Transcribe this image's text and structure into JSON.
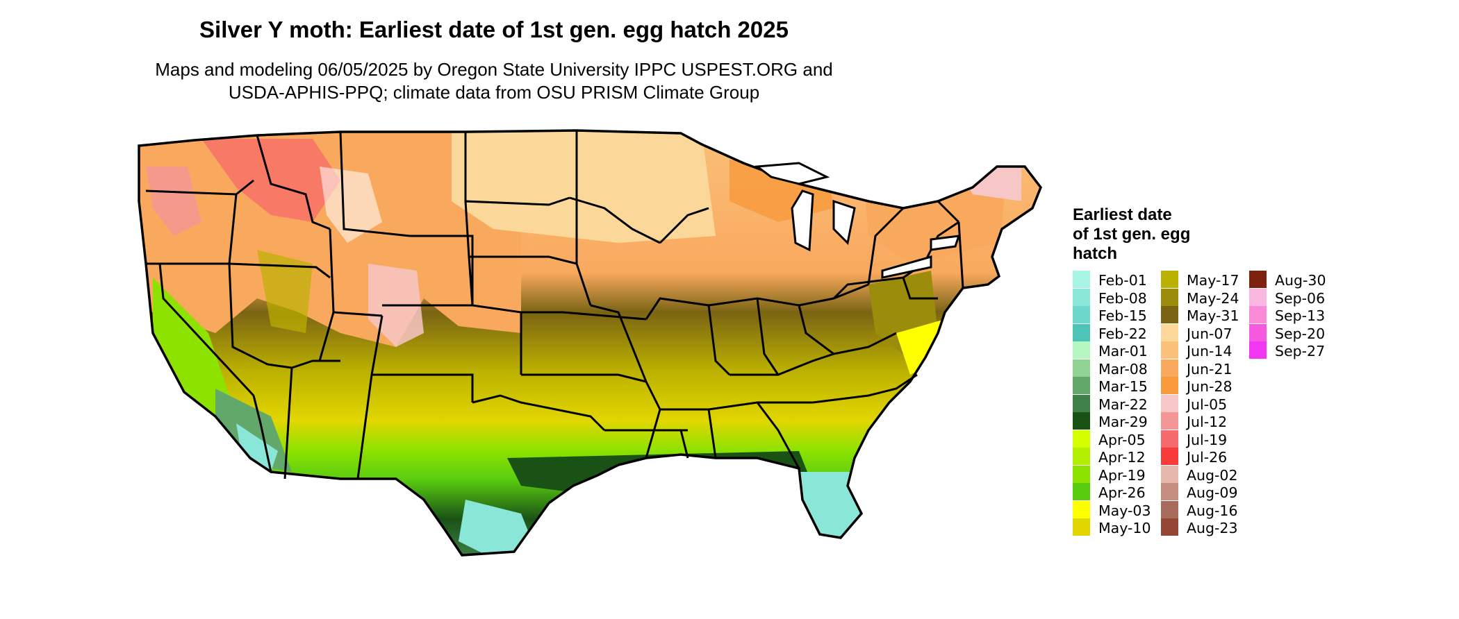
{
  "title": "Silver Y moth: Earliest date of 1st gen. egg hatch 2025",
  "subtitle_line1": "Maps and modeling 06/05/2025 by Oregon State University IPPC USPEST.ORG and",
  "subtitle_line2": "USDA-APHIS-PPQ; climate data from OSU PRISM Climate Group",
  "legend": {
    "title_lines": [
      "Earliest date",
      "of 1st gen. egg",
      "hatch"
    ],
    "columns": [
      [
        {
          "label": "Feb-01",
          "color": "#a8f5e4"
        },
        {
          "label": "Feb-08",
          "color": "#8ae6d6"
        },
        {
          "label": "Feb-15",
          "color": "#6dd7cc"
        },
        {
          "label": "Feb-22",
          "color": "#4ec4b9"
        },
        {
          "label": "Mar-01",
          "color": "#b6f6c1"
        },
        {
          "label": "Mar-08",
          "color": "#8fd294"
        },
        {
          "label": "Mar-15",
          "color": "#62a86a"
        },
        {
          "label": "Mar-22",
          "color": "#3f8049"
        },
        {
          "label": "Mar-29",
          "color": "#1a5216"
        },
        {
          "label": "Apr-05",
          "color": "#d4ff00"
        },
        {
          "label": "Apr-12",
          "color": "#b3f000"
        },
        {
          "label": "Apr-19",
          "color": "#8ee200"
        },
        {
          "label": "Apr-26",
          "color": "#5acc10"
        },
        {
          "label": "May-03",
          "color": "#ffff00"
        },
        {
          "label": "May-10",
          "color": "#e1d600"
        }
      ],
      [
        {
          "label": "May-17",
          "color": "#bcb100"
        },
        {
          "label": "May-24",
          "color": "#9b8c0b"
        },
        {
          "label": "May-31",
          "color": "#7a6414"
        },
        {
          "label": "Jun-07",
          "color": "#fbd79a"
        },
        {
          "label": "Jun-14",
          "color": "#fbc07a"
        },
        {
          "label": "Jun-21",
          "color": "#f9a95e"
        },
        {
          "label": "Jun-28",
          "color": "#f89a3c"
        },
        {
          "label": "Jul-05",
          "color": "#f7c6c6"
        },
        {
          "label": "Jul-12",
          "color": "#f49696"
        },
        {
          "label": "Jul-19",
          "color": "#f56a6a"
        },
        {
          "label": "Jul-26",
          "color": "#f83a3a"
        },
        {
          "label": "Aug-02",
          "color": "#e5b8ab"
        },
        {
          "label": "Aug-09",
          "color": "#c58d80"
        },
        {
          "label": "Aug-16",
          "color": "#a86a5b"
        },
        {
          "label": "Aug-23",
          "color": "#944734"
        }
      ],
      [
        {
          "label": "Aug-30",
          "color": "#7d220d"
        },
        {
          "label": "Sep-06",
          "color": "#f8b7de"
        },
        {
          "label": "Sep-13",
          "color": "#f88ad8"
        },
        {
          "label": "Sep-20",
          "color": "#f559e0"
        },
        {
          "label": "Sep-27",
          "color": "#f236f2"
        }
      ]
    ]
  }
}
